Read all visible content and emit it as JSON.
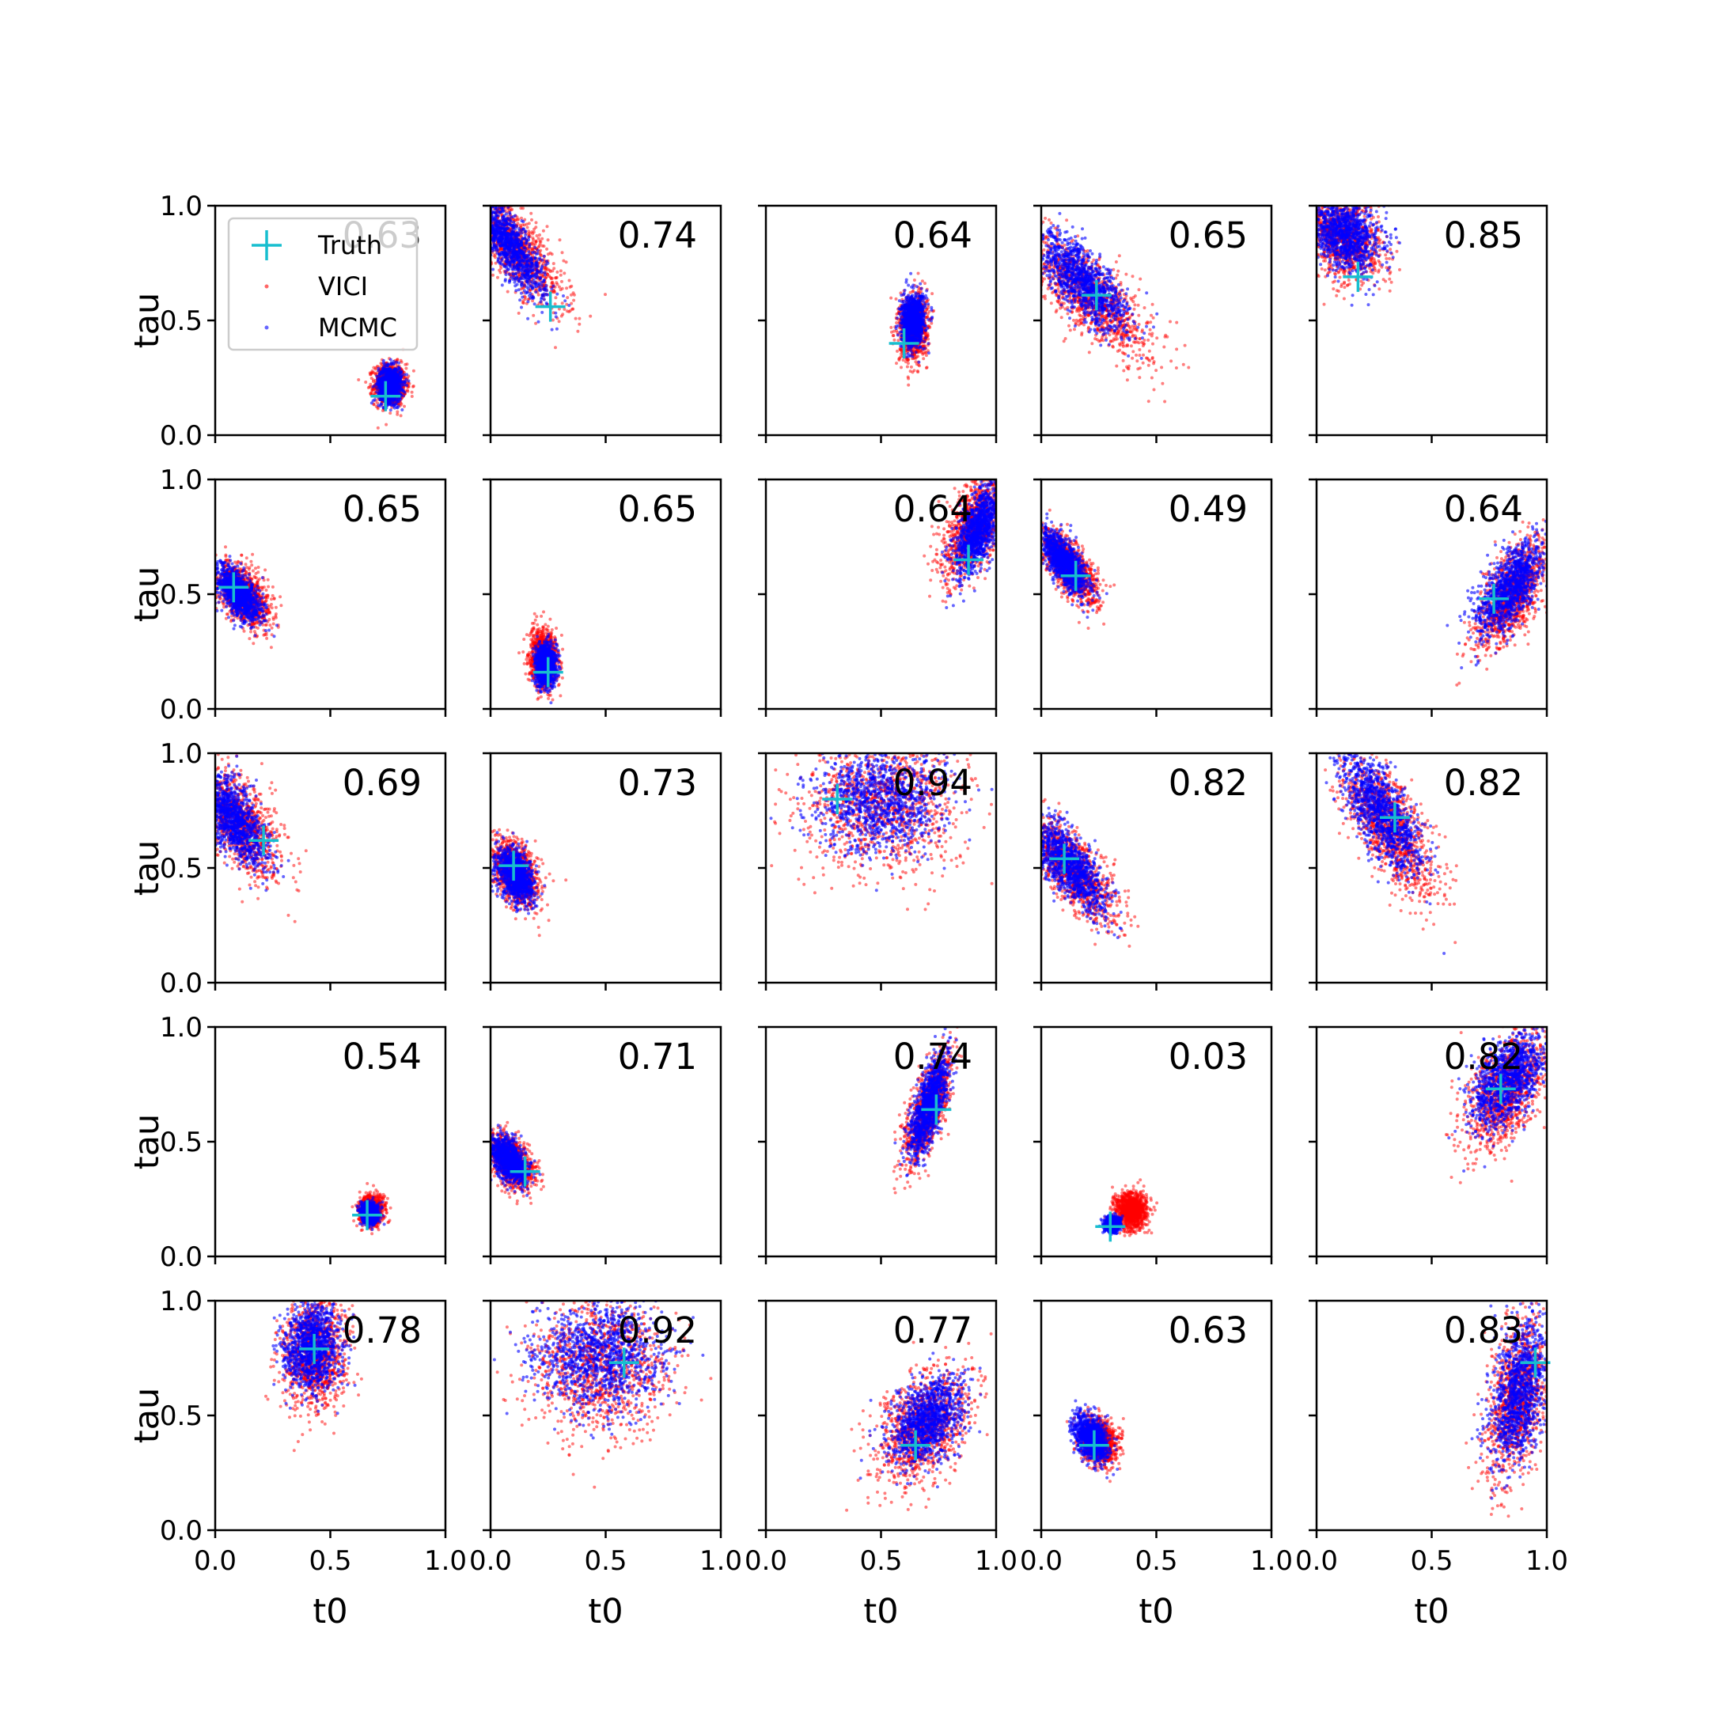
{
  "chart_data": {
    "type": "scatter",
    "layout": {
      "rows": 5,
      "cols": 5
    },
    "xlabel": "t0",
    "ylabel": "tau",
    "xlim": [
      0,
      1
    ],
    "ylim": [
      0,
      1
    ],
    "xticks": [
      "0.0",
      "0.5",
      "1.0"
    ],
    "yticks": [
      "0.0",
      "0.5",
      "1.0"
    ],
    "grid": false,
    "legend": {
      "placement": "upper-left of first panel",
      "entries": [
        {
          "name": "Truth",
          "marker": "plus",
          "color": "#17becf"
        },
        {
          "name": "VICI",
          "marker": "dot",
          "color": "#ff0000"
        },
        {
          "name": "MCMC",
          "marker": "dot",
          "color": "#0000ff"
        }
      ]
    },
    "series_colors": {
      "truth": "#17becf",
      "vici": "#ff0000",
      "mcmc": "#0000ff"
    },
    "panels": [
      {
        "annotation": "0.63",
        "truth": [
          0.74,
          0.17
        ],
        "vici": {
          "cx": 0.76,
          "cy": 0.22,
          "sx": 0.034,
          "sy": 0.045,
          "rho": 0.0
        },
        "mcmc": {
          "cx": 0.76,
          "cy": 0.22,
          "sx": 0.025,
          "sy": 0.038,
          "rho": 0.0
        }
      },
      {
        "annotation": "0.74",
        "truth": [
          0.26,
          0.56
        ],
        "vici": {
          "cx": 0.1,
          "cy": 0.82,
          "sx": 0.11,
          "sy": 0.13,
          "rho": -0.8
        },
        "mcmc": {
          "cx": 0.08,
          "cy": 0.83,
          "sx": 0.08,
          "sy": 0.11,
          "rho": -0.8
        }
      },
      {
        "annotation": "0.64",
        "truth": [
          0.6,
          0.4
        ],
        "vici": {
          "cx": 0.64,
          "cy": 0.47,
          "sx": 0.03,
          "sy": 0.07,
          "rho": 0.1
        },
        "mcmc": {
          "cx": 0.64,
          "cy": 0.5,
          "sx": 0.025,
          "sy": 0.055,
          "rho": 0.1
        }
      },
      {
        "annotation": "0.65",
        "truth": [
          0.24,
          0.61
        ],
        "vici": {
          "cx": 0.22,
          "cy": 0.6,
          "sx": 0.13,
          "sy": 0.13,
          "rho": -0.75
        },
        "mcmc": {
          "cx": 0.18,
          "cy": 0.67,
          "sx": 0.1,
          "sy": 0.11,
          "rho": -0.75
        }
      },
      {
        "annotation": "0.85",
        "truth": [
          0.18,
          0.69
        ],
        "vici": {
          "cx": 0.12,
          "cy": 0.86,
          "sx": 0.08,
          "sy": 0.09,
          "rho": -0.3
        },
        "mcmc": {
          "cx": 0.12,
          "cy": 0.88,
          "sx": 0.08,
          "sy": 0.08,
          "rho": -0.3
        }
      },
      {
        "annotation": "0.65",
        "truth": [
          0.08,
          0.53
        ],
        "vici": {
          "cx": 0.12,
          "cy": 0.5,
          "sx": 0.06,
          "sy": 0.07,
          "rho": -0.5
        },
        "mcmc": {
          "cx": 0.1,
          "cy": 0.5,
          "sx": 0.05,
          "sy": 0.06,
          "rho": -0.6
        }
      },
      {
        "annotation": "0.65",
        "truth": [
          0.25,
          0.16
        ],
        "vici": {
          "cx": 0.23,
          "cy": 0.22,
          "sx": 0.03,
          "sy": 0.06,
          "rho": 0.0
        },
        "mcmc": {
          "cx": 0.24,
          "cy": 0.19,
          "sx": 0.022,
          "sy": 0.045,
          "rho": 0.0
        }
      },
      {
        "annotation": "0.64",
        "truth": [
          0.88,
          0.65
        ],
        "vici": {
          "cx": 0.9,
          "cy": 0.8,
          "sx": 0.07,
          "sy": 0.12,
          "rho": 0.6
        },
        "mcmc": {
          "cx": 0.92,
          "cy": 0.78,
          "sx": 0.05,
          "sy": 0.1,
          "rho": 0.6
        }
      },
      {
        "annotation": "0.49",
        "truth": [
          0.15,
          0.58
        ],
        "vici": {
          "cx": 0.12,
          "cy": 0.62,
          "sx": 0.06,
          "sy": 0.08,
          "rho": -0.7
        },
        "mcmc": {
          "cx": 0.1,
          "cy": 0.64,
          "sx": 0.05,
          "sy": 0.07,
          "rho": -0.7
        }
      },
      {
        "annotation": "0.64",
        "truth": [
          0.77,
          0.48
        ],
        "vici": {
          "cx": 0.85,
          "cy": 0.5,
          "sx": 0.08,
          "sy": 0.12,
          "rho": 0.65
        },
        "mcmc": {
          "cx": 0.84,
          "cy": 0.53,
          "sx": 0.07,
          "sy": 0.1,
          "rho": 0.65
        }
      },
      {
        "annotation": "0.69",
        "truth": [
          0.21,
          0.62
        ],
        "vici": {
          "cx": 0.1,
          "cy": 0.7,
          "sx": 0.09,
          "sy": 0.12,
          "rho": -0.6
        },
        "mcmc": {
          "cx": 0.08,
          "cy": 0.71,
          "sx": 0.07,
          "sy": 0.1,
          "rho": -0.6
        }
      },
      {
        "annotation": "0.73",
        "truth": [
          0.1,
          0.51
        ],
        "vici": {
          "cx": 0.11,
          "cy": 0.47,
          "sx": 0.05,
          "sy": 0.07,
          "rho": -0.4
        },
        "mcmc": {
          "cx": 0.11,
          "cy": 0.47,
          "sx": 0.04,
          "sy": 0.06,
          "rho": -0.4
        }
      },
      {
        "annotation": "0.94",
        "truth": [
          0.31,
          0.8
        ],
        "vici": {
          "cx": 0.5,
          "cy": 0.78,
          "sx": 0.17,
          "sy": 0.15,
          "rho": 0.0
        },
        "mcmc": {
          "cx": 0.5,
          "cy": 0.8,
          "sx": 0.15,
          "sy": 0.12,
          "rho": 0.0
        }
      },
      {
        "annotation": "0.82",
        "truth": [
          0.1,
          0.54
        ],
        "vici": {
          "cx": 0.13,
          "cy": 0.5,
          "sx": 0.1,
          "sy": 0.12,
          "rho": -0.75
        },
        "mcmc": {
          "cx": 0.12,
          "cy": 0.52,
          "sx": 0.08,
          "sy": 0.1,
          "rho": -0.75
        }
      },
      {
        "annotation": "0.82",
        "truth": [
          0.34,
          0.72
        ],
        "vici": {
          "cx": 0.32,
          "cy": 0.68,
          "sx": 0.1,
          "sy": 0.15,
          "rho": -0.7
        },
        "mcmc": {
          "cx": 0.28,
          "cy": 0.74,
          "sx": 0.09,
          "sy": 0.13,
          "rho": -0.7
        }
      },
      {
        "annotation": "0.54",
        "truth": [
          0.66,
          0.18
        ],
        "vici": {
          "cx": 0.68,
          "cy": 0.2,
          "sx": 0.025,
          "sy": 0.03,
          "rho": 0.0
        },
        "mcmc": {
          "cx": 0.67,
          "cy": 0.19,
          "sx": 0.018,
          "sy": 0.022,
          "rho": 0.0
        }
      },
      {
        "annotation": "0.71",
        "truth": [
          0.15,
          0.37
        ],
        "vici": {
          "cx": 0.09,
          "cy": 0.41,
          "sx": 0.05,
          "sy": 0.06,
          "rho": -0.5
        },
        "mcmc": {
          "cx": 0.08,
          "cy": 0.42,
          "sx": 0.04,
          "sy": 0.05,
          "rho": -0.5
        }
      },
      {
        "annotation": "0.74",
        "truth": [
          0.74,
          0.64
        ],
        "vici": {
          "cx": 0.7,
          "cy": 0.63,
          "sx": 0.05,
          "sy": 0.12,
          "rho": 0.7
        },
        "mcmc": {
          "cx": 0.71,
          "cy": 0.66,
          "sx": 0.04,
          "sy": 0.11,
          "rho": 0.7
        }
      },
      {
        "annotation": "0.03",
        "truth": [
          0.3,
          0.13
        ],
        "vici": {
          "cx": 0.39,
          "cy": 0.2,
          "sx": 0.035,
          "sy": 0.04,
          "rho": 0.0
        },
        "mcmc": {
          "cx": 0.31,
          "cy": 0.14,
          "sx": 0.015,
          "sy": 0.015,
          "rho": 0.0
        }
      },
      {
        "annotation": "0.82",
        "truth": [
          0.8,
          0.73
        ],
        "vici": {
          "cx": 0.82,
          "cy": 0.72,
          "sx": 0.09,
          "sy": 0.13,
          "rho": 0.55
        },
        "mcmc": {
          "cx": 0.83,
          "cy": 0.77,
          "sx": 0.08,
          "sy": 0.11,
          "rho": 0.55
        }
      },
      {
        "annotation": "0.78",
        "truth": [
          0.43,
          0.79
        ],
        "vici": {
          "cx": 0.43,
          "cy": 0.77,
          "sx": 0.07,
          "sy": 0.12,
          "rho": 0.0
        },
        "mcmc": {
          "cx": 0.42,
          "cy": 0.8,
          "sx": 0.06,
          "sy": 0.1,
          "rho": 0.0
        }
      },
      {
        "annotation": "0.92",
        "truth": [
          0.58,
          0.73
        ],
        "vici": {
          "cx": 0.48,
          "cy": 0.72,
          "sx": 0.15,
          "sy": 0.15,
          "rho": 0.0
        },
        "mcmc": {
          "cx": 0.47,
          "cy": 0.76,
          "sx": 0.14,
          "sy": 0.13,
          "rho": 0.0
        }
      },
      {
        "annotation": "0.77",
        "truth": [
          0.65,
          0.37
        ],
        "vici": {
          "cx": 0.68,
          "cy": 0.45,
          "sx": 0.1,
          "sy": 0.12,
          "rho": 0.4
        },
        "mcmc": {
          "cx": 0.7,
          "cy": 0.48,
          "sx": 0.08,
          "sy": 0.1,
          "rho": 0.4
        }
      },
      {
        "annotation": "0.63",
        "truth": [
          0.23,
          0.37
        ],
        "vici": {
          "cx": 0.25,
          "cy": 0.39,
          "sx": 0.04,
          "sy": 0.05,
          "rho": -0.2
        },
        "mcmc": {
          "cx": 0.22,
          "cy": 0.4,
          "sx": 0.035,
          "sy": 0.05,
          "rho": -0.4
        }
      },
      {
        "annotation": "0.83",
        "truth": [
          0.95,
          0.73
        ],
        "vici": {
          "cx": 0.87,
          "cy": 0.58,
          "sx": 0.07,
          "sy": 0.18,
          "rho": 0.4
        },
        "mcmc": {
          "cx": 0.88,
          "cy": 0.6,
          "sx": 0.06,
          "sy": 0.16,
          "rho": 0.4
        }
      }
    ]
  }
}
